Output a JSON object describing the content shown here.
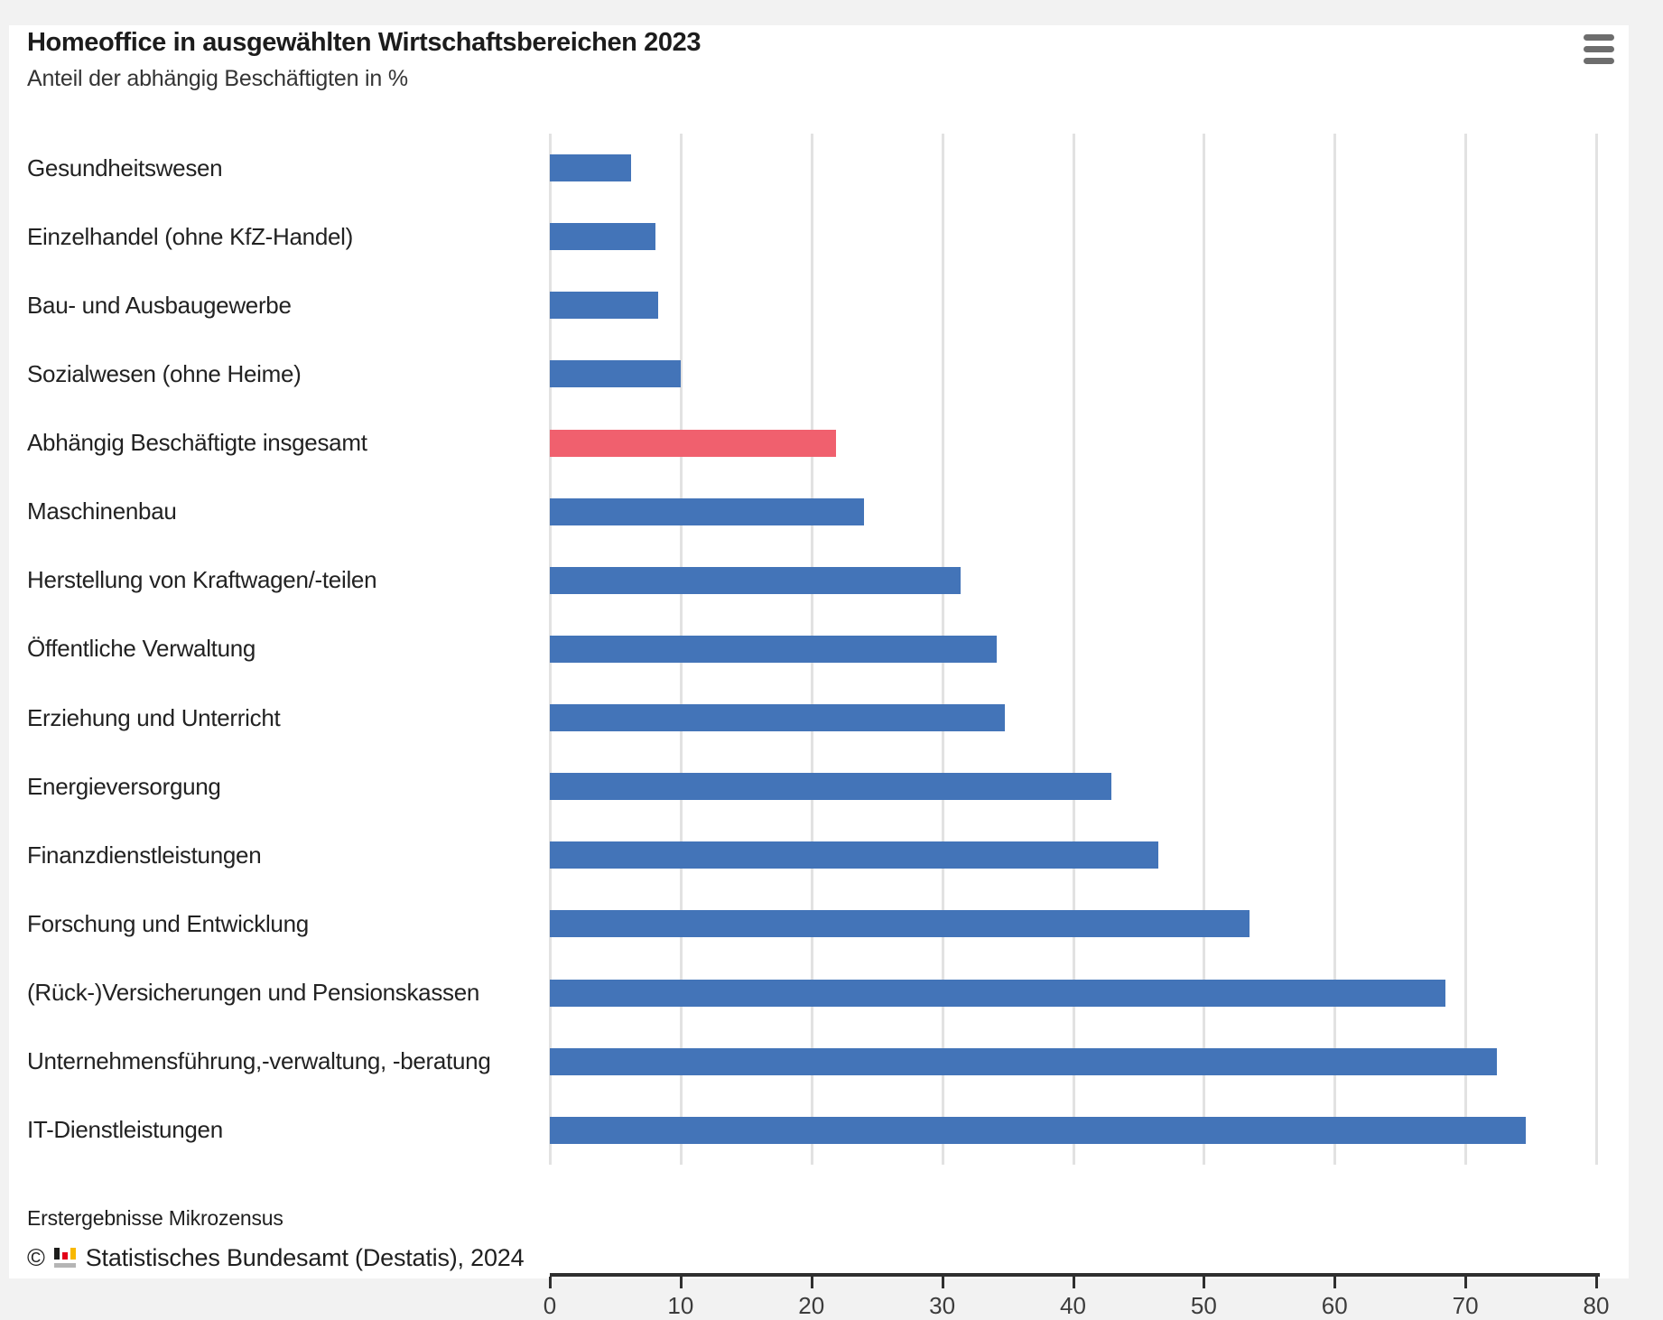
{
  "header": {
    "title": "Homeoffice in ausgewählten Wirtschaftsbereichen 2023",
    "subtitle": "Anteil der abhängig Beschäftigten in %",
    "menu_icon": "hamburger-menu-icon"
  },
  "chart_data": {
    "type": "bar",
    "orientation": "horizontal",
    "title": "Homeoffice in ausgewählten Wirtschaftsbereichen 2023",
    "subtitle": "Anteil der abhängig Beschäftigten in %",
    "xlabel": "",
    "ylabel": "",
    "xlim": [
      0,
      80
    ],
    "x_ticks": [
      0,
      10,
      20,
      30,
      40,
      50,
      60,
      70,
      80
    ],
    "grid": true,
    "categories": [
      "Gesundheitswesen",
      "Einzelhandel (ohne KfZ-Handel)",
      "Bau- und Ausbaugewerbe",
      "Sozialwesen (ohne Heime)",
      "Abhängig Beschäftigte insgesamt",
      "Maschinenbau",
      "Herstellung von Kraftwagen/-teilen",
      "Öffentliche Verwaltung",
      "Erziehung und Unterricht",
      "Energieversorgung",
      "Finanzdienstleistungen",
      "Forschung und Entwicklung",
      "(Rück-)Versicherungen und Pensionskassen",
      "Unternehmensführung,-verwaltung, -beratung",
      "IT-Dienstleistungen"
    ],
    "values": [
      6.2,
      8.1,
      8.3,
      10.0,
      21.9,
      24.0,
      31.4,
      34.2,
      34.8,
      42.9,
      46.5,
      53.5,
      68.5,
      72.4,
      74.6
    ],
    "highlight_category": "Abhängig Beschäftigte insgesamt",
    "highlight_index": 4,
    "bar_color": "#4374b8",
    "highlight_color": "#f0606e"
  },
  "footer": {
    "source_note": "Erstergebnisse Mikrozensus",
    "copyright_prefix": "©",
    "copyright_text": "Statistisches Bundesamt (Destatis), 2024",
    "logo": {
      "name": "destatis-logo",
      "colors": {
        "black": "#1d1d1b",
        "red": "#e2001a",
        "gold": "#f8b800",
        "base_gray": "#b5b5b5"
      }
    }
  }
}
